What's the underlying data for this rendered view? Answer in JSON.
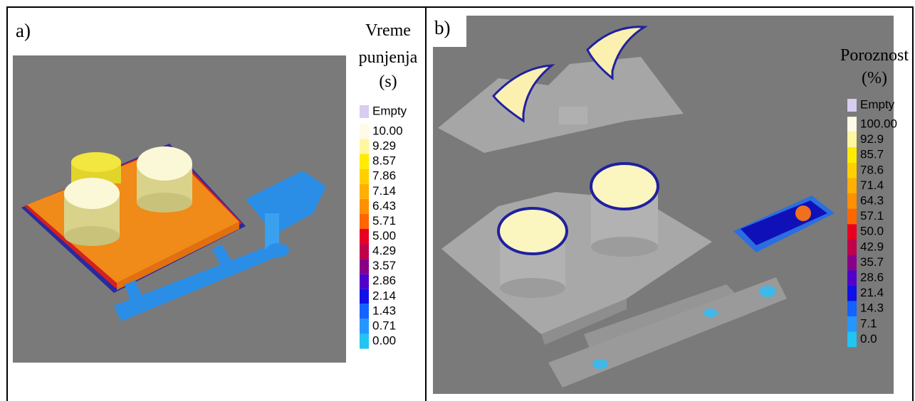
{
  "panels": [
    {
      "label": "a)",
      "legend": {
        "title": [
          "Vreme",
          "punjenja",
          "(s)"
        ],
        "entries": [
          "Empty",
          "10.00",
          "9.29",
          "8.57",
          "7.86",
          "7.14",
          "6.43",
          "5.71",
          "5.00",
          "4.29",
          "3.57",
          "2.86",
          "2.14",
          "1.43",
          "0.71",
          "0.00"
        ]
      }
    },
    {
      "label": "b)",
      "legend": {
        "title": [
          "Poroznost",
          "(%)"
        ],
        "entries": [
          "Empty",
          "100.00",
          "92.9",
          "85.7",
          "78.6",
          "71.4",
          "64.3",
          "57.1",
          "50.0",
          "42.9",
          "35.7",
          "28.6",
          "21.4",
          "14.3",
          "7.1",
          "0.0"
        ]
      }
    }
  ]
}
